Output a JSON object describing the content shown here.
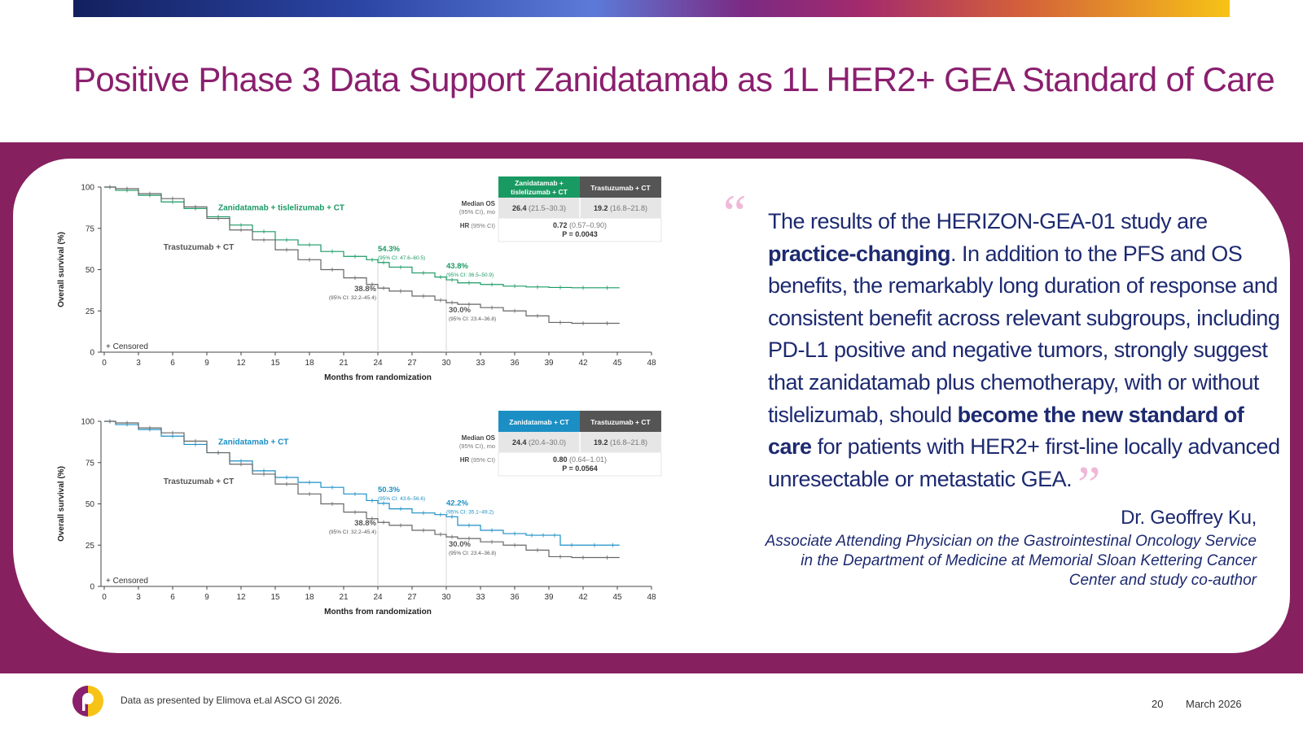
{
  "title": "Positive Phase 3 Data Support Zanidatamab as 1L HER2+ GEA Standard of Care",
  "quote": {
    "p1": "The results of the HERIZON-GEA-01 study are ",
    "b1": "practice-changing",
    "p2": ". In addition to the PFS and OS benefits, the remarkably long duration of response and consistent benefit across relevant subgroups, including PD-L1 positive and negative tumors, strongly suggest that zanidatamab plus chemotherapy, with or without tislelizumab, should ",
    "b2": "become the new standard of care",
    "p3": " for patients with HER2+ first-line locally advanced unresectable or metastatic GEA.",
    "open_mark": "“",
    "close_mark": "”"
  },
  "author": "Dr. Geoffrey Ku,",
  "affiliation": "Associate Attending Physician on the Gastrointestinal Oncology Service in the Department of Medicine at Memorial Sloan Kettering Cancer Center and study co-author",
  "footer": {
    "source": "Data as presented by Elimova et.al ASCO GI 2026.",
    "page": "20",
    "date": "March 2026"
  },
  "colors": {
    "title": "#8a1f6e",
    "band": "#86205f",
    "green": "#1a9a63",
    "blue": "#1b8fc4",
    "gray": "#666666"
  },
  "chart_data": [
    {
      "type": "line",
      "xlabel": "Months from randomization",
      "ylabel": "Overall survival (%)",
      "x_ticks": [
        "0",
        "3",
        "6",
        "9",
        "12",
        "15",
        "18",
        "21",
        "24",
        "27",
        "30",
        "33",
        "36",
        "39",
        "42",
        "45",
        "48"
      ],
      "y_ticks": [
        "0",
        "25",
        "50",
        "75",
        "100"
      ],
      "xlim": [
        0,
        48
      ],
      "ylim": [
        0,
        100
      ],
      "censored_label": "+ Censored",
      "series": [
        {
          "name": "Zanidatamab + tislelizumab + CT",
          "color": "#1a9a63",
          "x": [
            0,
            1,
            3,
            5,
            7,
            9,
            11,
            13,
            15,
            17,
            19,
            21,
            23,
            24,
            25,
            27,
            29,
            30,
            31,
            33,
            35,
            37,
            39,
            41,
            43,
            45.2
          ],
          "y": [
            100,
            98,
            95,
            91,
            87,
            82,
            77,
            73,
            68,
            65,
            61,
            58,
            56,
            54.3,
            51.5,
            48,
            45.5,
            43.8,
            42,
            41,
            40,
            39.5,
            39.2,
            39,
            39,
            39
          ]
        },
        {
          "name": "Trastuzumab + CT",
          "color": "#666666",
          "x": [
            0,
            1,
            3,
            5,
            7,
            9,
            11,
            13,
            15,
            17,
            19,
            21,
            23,
            24,
            25,
            27,
            29,
            30,
            31,
            33,
            35,
            37,
            39,
            41,
            43,
            45.2
          ],
          "y": [
            100,
            99,
            96,
            93,
            88,
            81,
            74,
            68,
            62,
            56,
            50,
            45,
            41,
            38.8,
            37,
            34,
            31.5,
            30,
            29,
            27,
            25,
            22,
            18,
            17.5,
            17.5,
            17.5
          ]
        }
      ],
      "annotations": [
        {
          "x": 24,
          "y": 54.3,
          "label": "54.3%",
          "ci": "(95% CI: 47.6–60.5)",
          "color": "#1a9a63"
        },
        {
          "x": 30,
          "y": 43.8,
          "label": "43.8%",
          "ci": "(95% CI: 36.5–50.9)",
          "color": "#1a9a63"
        },
        {
          "x": 24,
          "y": 38.8,
          "label": "38.8%",
          "ci": "(95% CI: 32.2–45.4)",
          "color": "#555555"
        },
        {
          "x": 30,
          "y": 30.0,
          "label": "30.0%",
          "ci": "(95% CI: 23.4–36.8)",
          "color": "#555555"
        }
      ],
      "table": {
        "header_a": [
          "Zanidatamab +",
          "tislelizumab + CT"
        ],
        "header_a_color": "#1a9a63",
        "header_b": "Trastuzumab + CT",
        "row1_label": "Median OS",
        "row1_sub": "(95% CI), mo",
        "row1_a_bold": "26.4",
        "row1_a_ci": " (21.5–30.3)",
        "row1_b_bold": "19.2",
        "row1_b_ci": " (16.8–21.8)",
        "row2_label": "HR",
        "row2_sub": " (95% CI)",
        "hr_bold": "0.72",
        "hr_ci": " (0.57–0.90)",
        "p_value": "P = 0.0043"
      }
    },
    {
      "type": "line",
      "xlabel": "Months from randomization",
      "ylabel": "Overall survival (%)",
      "x_ticks": [
        "0",
        "3",
        "6",
        "9",
        "12",
        "15",
        "18",
        "21",
        "24",
        "27",
        "30",
        "33",
        "36",
        "39",
        "42",
        "45",
        "48"
      ],
      "y_ticks": [
        "0",
        "25",
        "50",
        "75",
        "100"
      ],
      "xlim": [
        0,
        48
      ],
      "ylim": [
        0,
        100
      ],
      "censored_label": "+ Censored",
      "series": [
        {
          "name": "Zanidatamab + CT",
          "color": "#1b8fc4",
          "x": [
            0,
            1,
            3,
            5,
            7,
            9,
            11,
            13,
            15,
            17,
            19,
            21,
            23,
            24,
            25,
            27,
            29,
            30,
            31,
            33,
            35,
            37,
            38,
            39,
            40,
            42,
            44,
            45.2
          ],
          "y": [
            100,
            98,
            95,
            91,
            86,
            81,
            76,
            70,
            66,
            63,
            60,
            56,
            52,
            50.3,
            47,
            44.5,
            43.5,
            42.2,
            37,
            34,
            32,
            31,
            31,
            31,
            25,
            25,
            25,
            25
          ]
        },
        {
          "name": "Trastuzumab + CT",
          "color": "#666666",
          "x": [
            0,
            1,
            3,
            5,
            7,
            9,
            11,
            13,
            15,
            17,
            19,
            21,
            23,
            24,
            25,
            27,
            29,
            30,
            31,
            33,
            35,
            37,
            39,
            41,
            43,
            45.2
          ],
          "y": [
            100,
            99,
            96,
            93,
            88,
            81,
            74,
            68,
            62,
            56,
            50,
            45,
            41,
            38.8,
            37,
            34,
            31.5,
            30,
            29,
            27,
            25,
            22,
            18,
            17.5,
            17.5,
            17.5
          ]
        }
      ],
      "annotations": [
        {
          "x": 24,
          "y": 50.3,
          "label": "50.3%",
          "ci": "(95% CI: 43.6–56.6)",
          "color": "#1b8fc4"
        },
        {
          "x": 30,
          "y": 42.2,
          "label": "42.2%",
          "ci": "(95% CI: 35.1–49.2)",
          "color": "#1b8fc4"
        },
        {
          "x": 24,
          "y": 38.8,
          "label": "38.8%",
          "ci": "(95% CI: 32.2–45.4)",
          "color": "#555555"
        },
        {
          "x": 30,
          "y": 30.0,
          "label": "30.0%",
          "ci": "(95% CI: 23.4–36.8)",
          "color": "#555555"
        }
      ],
      "table": {
        "header_a": [
          "Zanidatamab + CT"
        ],
        "header_a_color": "#1b8fc4",
        "header_b": "Trastuzumab + CT",
        "row1_label": "Median OS",
        "row1_sub": "(95% CI), mo",
        "row1_a_bold": "24.4",
        "row1_a_ci": " (20.4–30.0)",
        "row1_b_bold": "19.2",
        "row1_b_ci": " (16.8–21.8)",
        "row2_label": "HR",
        "row2_sub": " (95% CI)",
        "hr_bold": "0.80",
        "hr_ci": " (0.64–1.01)",
        "p_value": "P = 0.0564"
      }
    }
  ]
}
